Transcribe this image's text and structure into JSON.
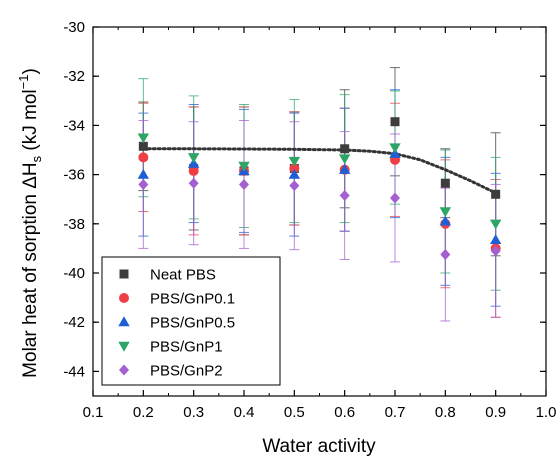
{
  "chart_data": {
    "type": "scatter",
    "xlabel": "Water activity",
    "ylabel_main": "Molar heat of sorption ΔH",
    "ylabel_sub": "s",
    "ylabel_unit": " (kJ mol",
    "ylabel_sup": "−1",
    "ylabel_close": ")",
    "xlim": [
      0.1,
      1.0
    ],
    "ylim": [
      -45,
      -30
    ],
    "xticks": [
      "0.1",
      "0.2",
      "0.3",
      "0.4",
      "0.5",
      "0.6",
      "0.7",
      "0.8",
      "0.9",
      "1.0"
    ],
    "yticks": [
      "-44",
      "-42",
      "-40",
      "-38",
      "-36",
      "-34",
      "-32",
      "-30"
    ],
    "legend_position": "bottom-left",
    "x": [
      0.2,
      0.3,
      0.4,
      0.5,
      0.6,
      0.7,
      0.8,
      0.9
    ],
    "series": [
      {
        "name": "Neat PBS",
        "marker": "square",
        "color": "#3d3d3d",
        "y": [
          -34.85,
          -35.75,
          -35.85,
          -35.75,
          -34.95,
          -33.85,
          -36.35,
          -36.8
        ],
        "err": [
          1.8,
          2.5,
          2.6,
          2.3,
          2.4,
          2.2,
          1.4,
          2.5
        ]
      },
      {
        "name": "PBS/GnP0.1",
        "marker": "circle",
        "color": "#ee3f46",
        "y": [
          -35.3,
          -35.85,
          -35.85,
          -35.75,
          -35.8,
          -35.4,
          -38.0,
          -39.0
        ],
        "err": [
          2.2,
          2.6,
          2.6,
          2.3,
          2.5,
          2.3,
          2.6,
          2.8
        ]
      },
      {
        "name": "PBS/GnP0.5",
        "marker": "triangle-up",
        "color": "#1f5fd6",
        "y": [
          -36.0,
          -35.55,
          -35.85,
          -36.0,
          -35.8,
          -35.15,
          -37.9,
          -38.65
        ],
        "err": [
          2.5,
          2.4,
          2.5,
          2.5,
          2.5,
          2.6,
          2.6,
          2.7
        ]
      },
      {
        "name": "PBS/GnP1",
        "marker": "triangle-down",
        "color": "#2ea566",
        "y": [
          -34.5,
          -35.3,
          -35.65,
          -35.45,
          -35.35,
          -34.9,
          -37.5,
          -38.0
        ],
        "err": [
          2.4,
          2.5,
          2.5,
          2.5,
          2.6,
          2.3,
          2.5,
          2.7
        ]
      },
      {
        "name": "PBS/GnP2",
        "marker": "diamond",
        "color": "#a45fd0",
        "y": [
          -36.4,
          -36.35,
          -36.4,
          -36.45,
          -36.85,
          -36.95,
          -39.25,
          -39.1
        ],
        "err": [
          2.6,
          2.5,
          2.6,
          2.6,
          2.6,
          2.6,
          2.7,
          2.7
        ]
      }
    ],
    "trend": {
      "style": "dotted",
      "x": [
        0.2,
        0.3,
        0.4,
        0.5,
        0.6,
        0.65,
        0.7,
        0.75,
        0.8,
        0.85,
        0.9
      ],
      "y": [
        -34.95,
        -34.95,
        -34.96,
        -34.97,
        -35.0,
        -35.05,
        -35.15,
        -35.4,
        -35.8,
        -36.25,
        -36.75
      ]
    }
  }
}
